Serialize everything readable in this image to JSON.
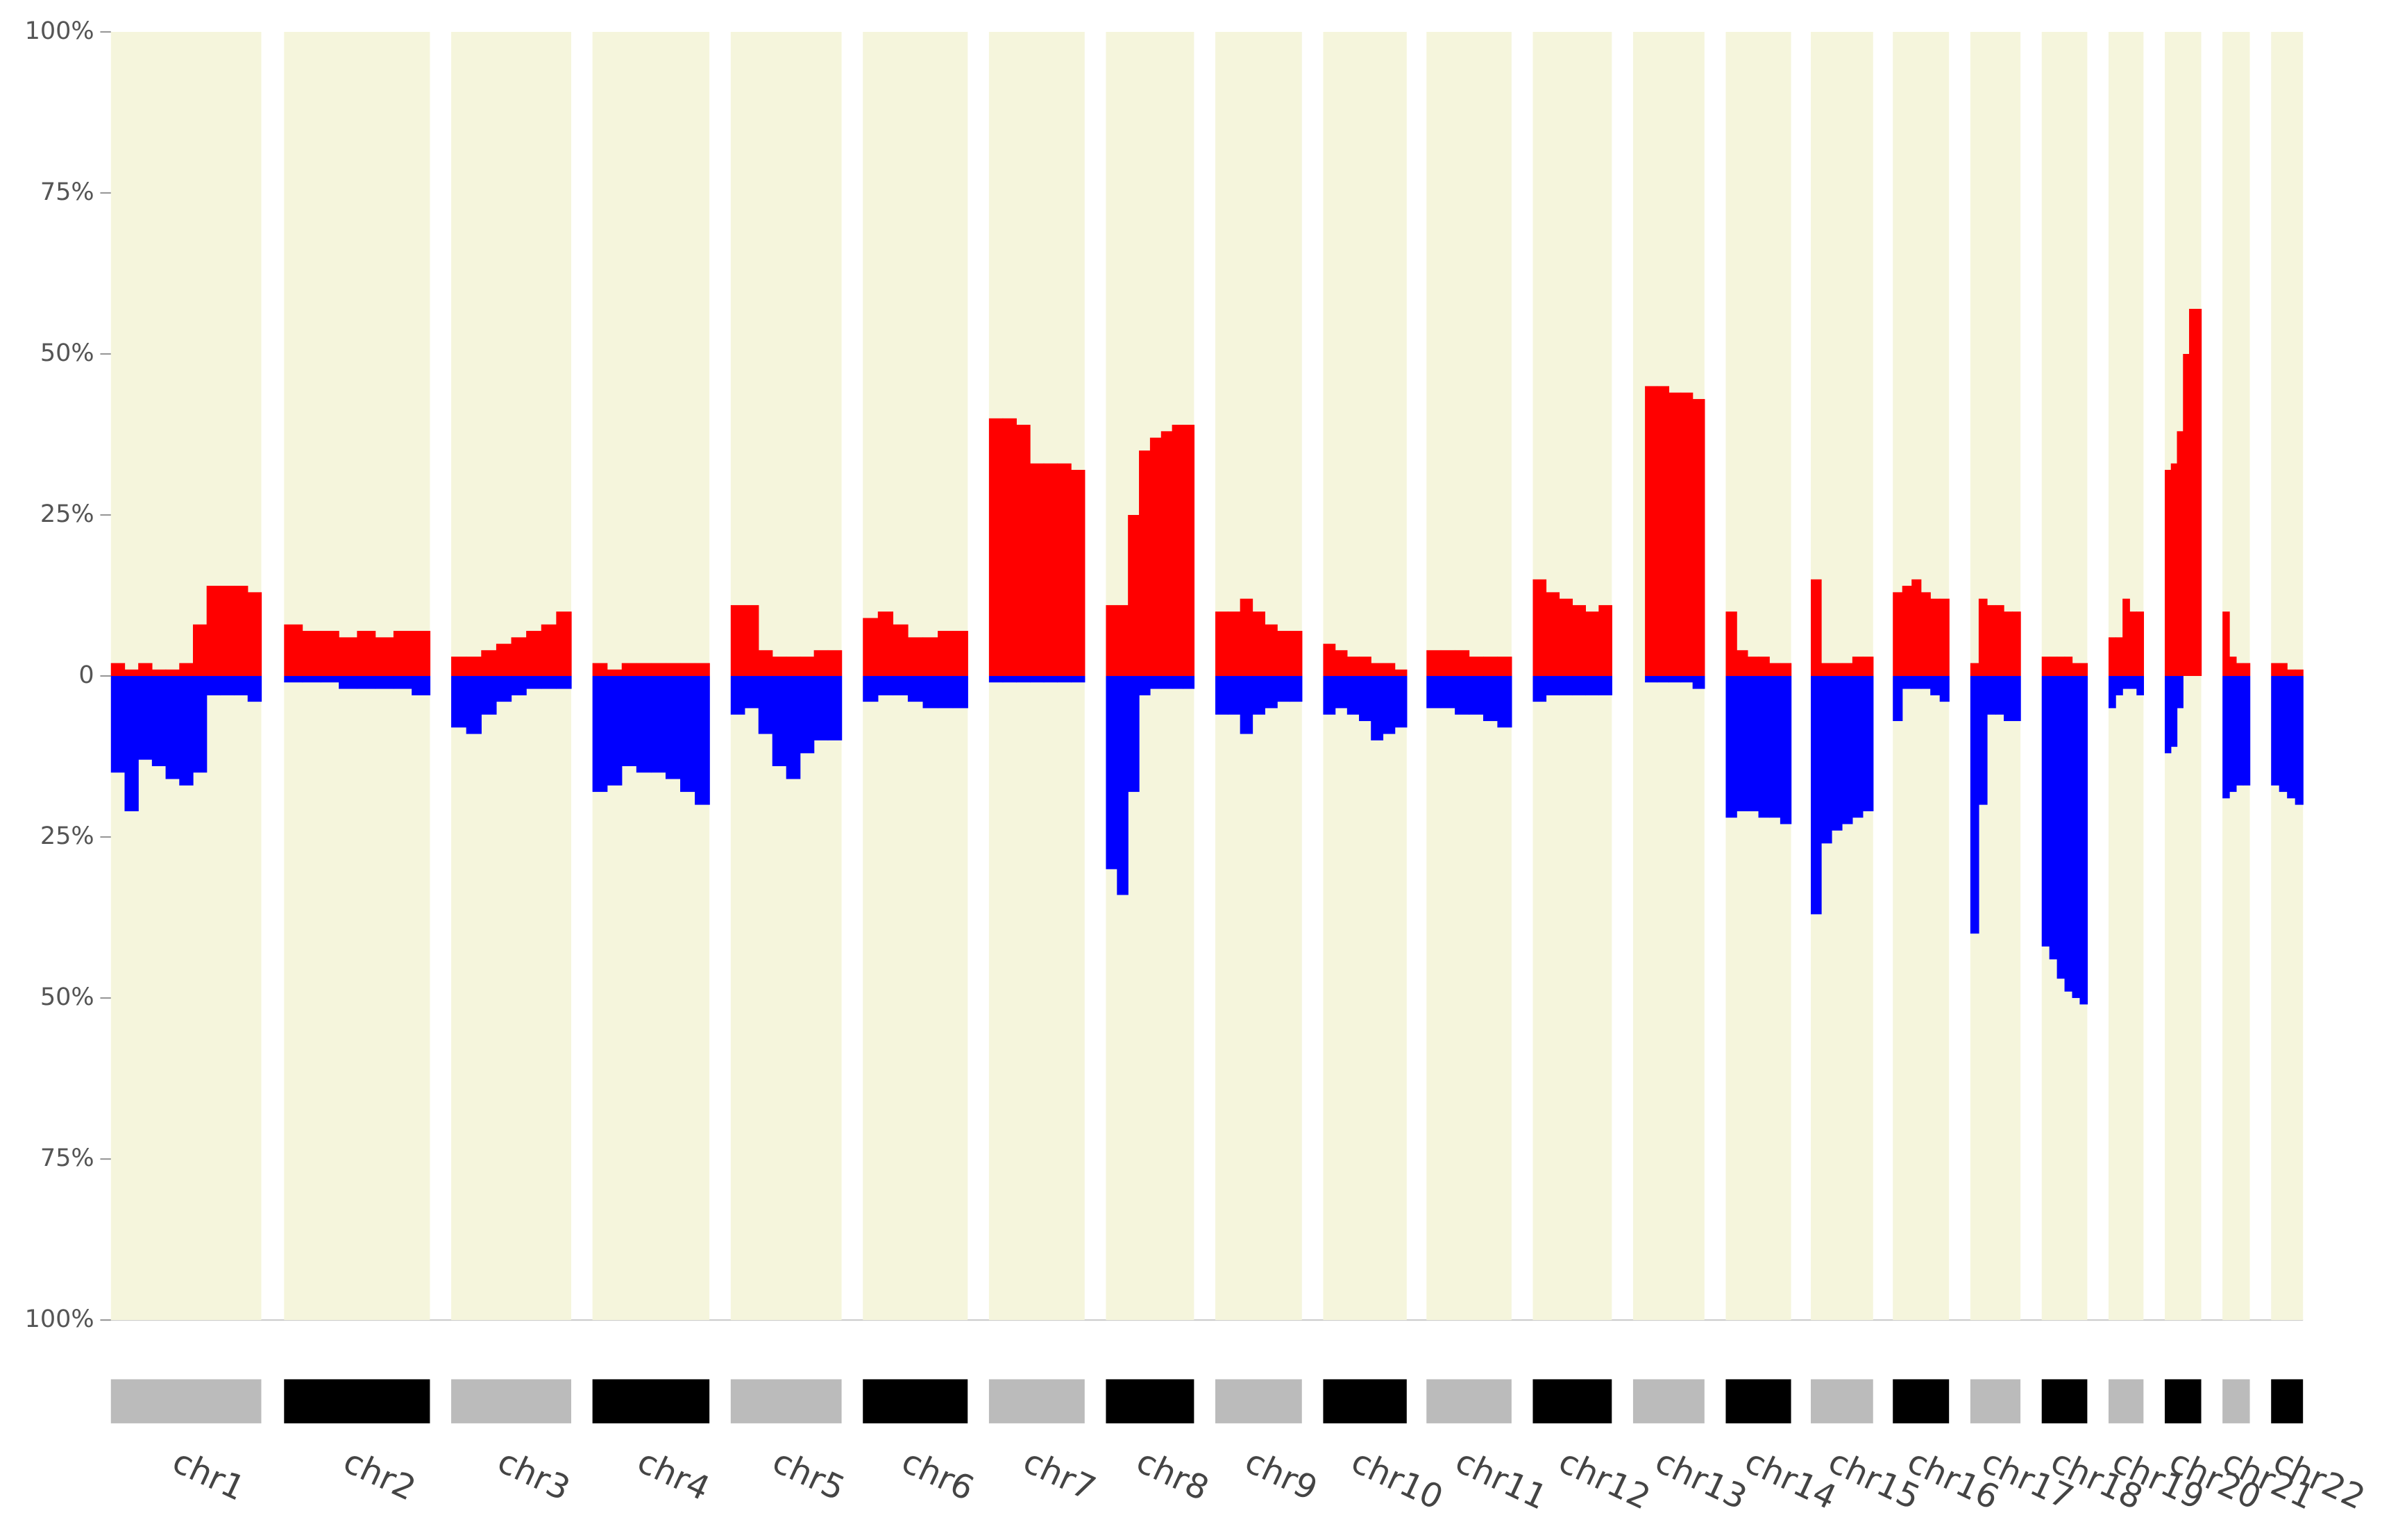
{
  "chart_data": {
    "type": "cnv-frequency",
    "categories": [
      "chr1",
      "chr2",
      "chr3",
      "chr4",
      "chr5",
      "chr6",
      "chr7",
      "chr8",
      "chr9",
      "chr10",
      "chr11",
      "chr12",
      "chr13",
      "chr14",
      "chr15",
      "chr16",
      "chr17",
      "chr18",
      "chr19",
      "chr20",
      "chr21",
      "chr22"
    ],
    "series": [
      {
        "color": "#ff0000",
        "values": [
          [
            2,
            1,
            2,
            1,
            1,
            2,
            8,
            14,
            14,
            14,
            13
          ],
          [
            8,
            7,
            7,
            6,
            7,
            6,
            7,
            7
          ],
          [
            3,
            3,
            4,
            5,
            6,
            7,
            8,
            10
          ],
          [
            2,
            1,
            2,
            2,
            2,
            2,
            2,
            2
          ],
          [
            11,
            11,
            4,
            3,
            3,
            3,
            4,
            4
          ],
          [
            9,
            10,
            8,
            6,
            6,
            7,
            7
          ],
          [
            40,
            40,
            39,
            33,
            33,
            33,
            32
          ],
          [
            11,
            11,
            25,
            35,
            37,
            38,
            39,
            39
          ],
          [
            10,
            10,
            12,
            10,
            8,
            7,
            7
          ],
          [
            5,
            4,
            3,
            3,
            2,
            2,
            1
          ],
          [
            4,
            4,
            4,
            3,
            3,
            3
          ],
          [
            15,
            13,
            12,
            11,
            10,
            11
          ],
          [
            0,
            45,
            45,
            44,
            44,
            43
          ],
          [
            10,
            4,
            3,
            3,
            2,
            2
          ],
          [
            15,
            2,
            2,
            2,
            3,
            3
          ],
          [
            13,
            14,
            15,
            13,
            12,
            12
          ],
          [
            2,
            12,
            11,
            11,
            10,
            10
          ],
          [
            3,
            3,
            3,
            3,
            2,
            2
          ],
          [
            6,
            6,
            12,
            10,
            10
          ],
          [
            32,
            33,
            38,
            50,
            57,
            57
          ],
          [
            10,
            3,
            2,
            2
          ],
          [
            2,
            2,
            1,
            1
          ]
        ]
      },
      {
        "color": "#0000ff",
        "values": [
          [
            -15,
            -21,
            -13,
            -14,
            -16,
            -17,
            -15,
            -3,
            -3,
            -3,
            -4
          ],
          [
            -1,
            -1,
            -1,
            -2,
            -2,
            -2,
            -2,
            -3
          ],
          [
            -8,
            -9,
            -6,
            -4,
            -3,
            -2,
            -2,
            -2
          ],
          [
            -18,
            -17,
            -14,
            -15,
            -15,
            -16,
            -18,
            -20
          ],
          [
            -6,
            -5,
            -9,
            -14,
            -16,
            -12,
            -10,
            -10
          ],
          [
            -4,
            -3,
            -3,
            -4,
            -5,
            -5,
            -5
          ],
          [
            -1,
            -1,
            -1,
            -1,
            -1,
            -1,
            -1
          ],
          [
            -30,
            -34,
            -18,
            -3,
            -2,
            -2,
            -2,
            -2
          ],
          [
            -6,
            -6,
            -9,
            -6,
            -5,
            -4,
            -4
          ],
          [
            -6,
            -5,
            -6,
            -7,
            -10,
            -9,
            -8
          ],
          [
            -5,
            -5,
            -6,
            -6,
            -7,
            -8
          ],
          [
            -4,
            -3,
            -3,
            -3,
            -3,
            -3
          ],
          [
            0,
            -1,
            -1,
            -1,
            -1,
            -2
          ],
          [
            -22,
            -21,
            -21,
            -22,
            -22,
            -23
          ],
          [
            -37,
            -26,
            -24,
            -23,
            -22,
            -21
          ],
          [
            -7,
            -2,
            -2,
            -2,
            -3,
            -4
          ],
          [
            -40,
            -20,
            -6,
            -6,
            -7,
            -7
          ],
          [
            -42,
            -44,
            -47,
            -49,
            -50,
            -51
          ],
          [
            -5,
            -3,
            -2,
            -2,
            -3
          ],
          [
            -12,
            -11,
            -5,
            0,
            0,
            0
          ],
          [
            -19,
            -18,
            -17,
            -17
          ],
          [
            -17,
            -18,
            -19,
            -20
          ]
        ]
      }
    ],
    "ylim": [
      -100,
      100
    ],
    "yticks": [
      {
        "value": 100,
        "label": "100%"
      },
      {
        "value": 75,
        "label": "75%"
      },
      {
        "value": 50,
        "label": "50%"
      },
      {
        "value": 25,
        "label": "25%"
      },
      0,
      {
        "value": -25,
        "label": "25%"
      },
      {
        "value": -50,
        "label": "50%"
      },
      {
        "value": -75,
        "label": "75%"
      },
      {
        "value": -100,
        "label": "100%"
      }
    ],
    "background_color": "#f5f5dc",
    "ideogram_colors": [
      "#bbbbbb",
      "#000000"
    ]
  }
}
